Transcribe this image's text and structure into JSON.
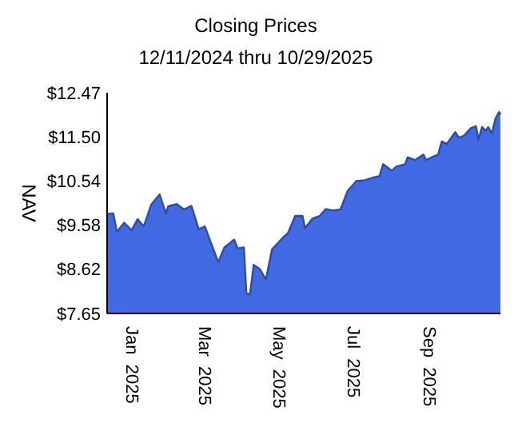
{
  "chart_data": {
    "type": "area",
    "title": "Closing Prices",
    "subtitle": "12/11/2024 thru 10/29/2025",
    "ylabel": "NAV",
    "x": [
      "2024-12-11",
      "2024-12-16",
      "2024-12-19",
      "2024-12-25",
      "2024-12-31",
      "2025-01-05",
      "2025-01-10",
      "2025-01-16",
      "2025-01-23",
      "2025-01-28",
      "2025-01-30",
      "2025-02-06",
      "2025-02-12",
      "2025-02-18",
      "2025-02-24",
      "2025-03-01",
      "2025-03-12",
      "2025-03-17",
      "2025-03-25",
      "2025-03-28",
      "2025-04-02",
      "2025-04-04",
      "2025-04-07",
      "2025-04-10",
      "2025-04-15",
      "2025-04-20",
      "2025-04-25",
      "2025-05-04",
      "2025-05-08",
      "2025-05-14",
      "2025-05-20",
      "2025-05-22",
      "2025-05-28",
      "2025-06-03",
      "2025-06-08",
      "2025-06-14",
      "2025-06-20",
      "2025-06-26",
      "2025-07-03",
      "2025-07-10",
      "2025-07-17",
      "2025-07-22",
      "2025-07-25",
      "2025-08-01",
      "2025-08-05",
      "2025-08-12",
      "2025-08-14",
      "2025-08-20",
      "2025-08-27",
      "2025-08-29",
      "2025-09-05",
      "2025-09-08",
      "2025-09-11",
      "2025-09-15",
      "2025-09-22",
      "2025-09-25",
      "2025-09-29",
      "2025-10-05",
      "2025-10-09",
      "2025-10-11",
      "2025-10-14",
      "2025-10-17",
      "2025-10-19",
      "2025-10-22",
      "2025-10-25",
      "2025-10-28",
      "2025-10-29"
    ],
    "series": [
      {
        "color": "#4169e1",
        "values": [
          9.82,
          9.84,
          9.43,
          9.63,
          9.47,
          9.71,
          9.55,
          10.02,
          10.25,
          9.84,
          9.99,
          10.04,
          9.92,
          10.0,
          9.49,
          9.55,
          8.77,
          9.09,
          9.26,
          9.07,
          9.09,
          8.09,
          8.07,
          8.71,
          8.62,
          8.39,
          9.05,
          9.31,
          9.4,
          9.78,
          9.78,
          9.51,
          9.72,
          9.78,
          9.93,
          9.9,
          9.92,
          10.33,
          10.54,
          10.56,
          10.62,
          10.65,
          10.91,
          10.77,
          10.86,
          10.91,
          11.06,
          11.0,
          11.12,
          11.0,
          11.09,
          11.12,
          11.41,
          11.35,
          11.61,
          11.49,
          11.53,
          11.7,
          11.74,
          11.45,
          11.72,
          11.64,
          11.72,
          11.58,
          11.91,
          12.05,
          11.99
        ]
      }
    ],
    "xlim": [
      "2024-12-11",
      "2025-10-29"
    ],
    "xticks": [
      {
        "value": "2025-01-01",
        "label": "Jan  2025"
      },
      {
        "value": "2025-03-01",
        "label": "Mar  2025"
      },
      {
        "value": "2025-05-01",
        "label": "May  2025"
      },
      {
        "value": "2025-07-01",
        "label": "Jul  2025"
      },
      {
        "value": "2025-09-01",
        "label": "Sep  2025"
      }
    ],
    "ylim": [
      7.65,
      12.47
    ],
    "yticks": [
      {
        "value": 7.65,
        "label": "$7.65"
      },
      {
        "value": 8.62,
        "label": "$8.62"
      },
      {
        "value": 9.58,
        "label": "$9.58"
      },
      {
        "value": 10.54,
        "label": "$10.54"
      },
      {
        "value": 11.5,
        "label": "$11.50"
      },
      {
        "value": 12.47,
        "label": "$12.47"
      }
    ],
    "grid": false
  }
}
